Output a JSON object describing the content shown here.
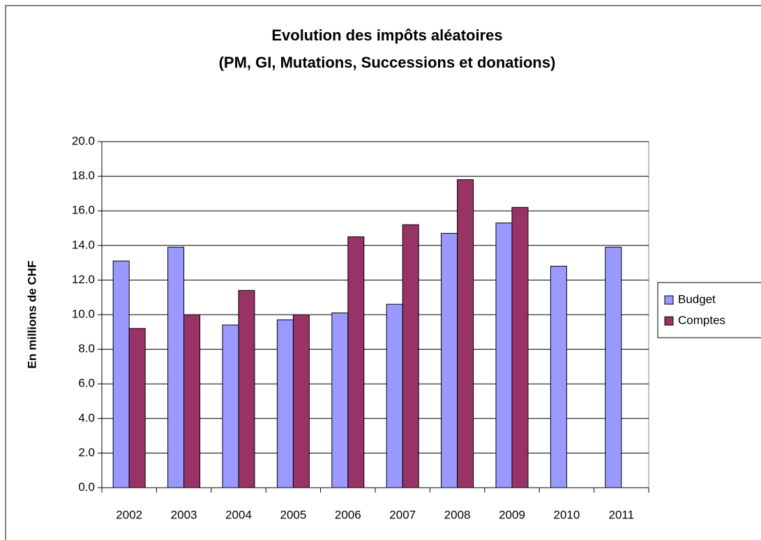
{
  "chart_data": {
    "type": "bar",
    "title": [
      "Evolution des impôts aléatoires",
      "(PM, GI, Mutations, Successions et donations)"
    ],
    "y_label": "En millions de CHF",
    "categories": [
      "2002",
      "2003",
      "2004",
      "2005",
      "2006",
      "2007",
      "2008",
      "2009",
      "2010",
      "2011"
    ],
    "series": [
      {
        "name": "Budget",
        "color": "#9999ff",
        "values": [
          13.1,
          13.9,
          9.4,
          9.7,
          10.1,
          10.6,
          14.7,
          15.3,
          12.8,
          13.9
        ]
      },
      {
        "name": "Comptes",
        "color": "#993366",
        "values": [
          9.2,
          10.0,
          11.4,
          10.0,
          14.5,
          15.2,
          17.8,
          16.2,
          null,
          null
        ]
      }
    ],
    "ylim": [
      0,
      20
    ],
    "yticks": [
      {
        "value": 0,
        "label": "0.0"
      },
      {
        "value": 2,
        "label": "2.0"
      },
      {
        "value": 4,
        "label": "4.0"
      },
      {
        "value": 6,
        "label": "6.0"
      },
      {
        "value": 8,
        "label": "8.0"
      },
      {
        "value": 10,
        "label": "10.0"
      },
      {
        "value": 12,
        "label": "12.0"
      },
      {
        "value": 14,
        "label": "14.0"
      },
      {
        "value": 16,
        "label": "16.0"
      },
      {
        "value": 18,
        "label": "18.0"
      },
      {
        "value": 20,
        "label": "20.0"
      }
    ],
    "grid": true,
    "legend": "right"
  }
}
